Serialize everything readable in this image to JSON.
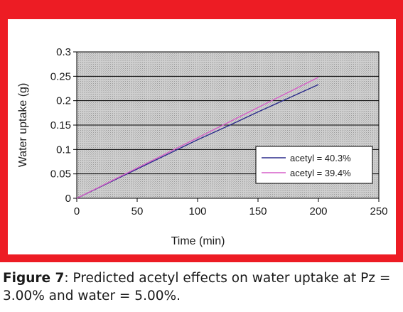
{
  "colors": {
    "frame": "#ed1c24",
    "plot_background": "#c8c8c8",
    "series_1": "#2b2b8c",
    "series_2": "#d65fc8"
  },
  "caption": {
    "label": "Figure 7",
    "text": ": Predicted acetyl effects on water uptake at Pz = 3.00% and water = 5.00%."
  },
  "chart_data": {
    "type": "line",
    "title": "",
    "xlabel": "Time (min)",
    "ylabel": "Water uptake (g)",
    "xlim": [
      0,
      250
    ],
    "ylim": [
      0,
      0.3
    ],
    "x_ticks": [
      "0",
      "50",
      "100",
      "150",
      "200",
      "250"
    ],
    "y_ticks": [
      "0",
      "0.05",
      "0.1",
      "0.15",
      "0.2",
      "0.25",
      "0.3"
    ],
    "grid": "horizontal",
    "legend_position": "center-right",
    "series": [
      {
        "name": "acetyl = 40.3%",
        "x": [
          0,
          25,
          50,
          75,
          100,
          125,
          150,
          175,
          200
        ],
        "y": [
          0,
          0.03,
          0.06,
          0.09,
          0.12,
          0.148,
          0.177,
          0.205,
          0.233
        ]
      },
      {
        "name": "acetyl = 39.4%",
        "x": [
          0,
          25,
          50,
          75,
          100,
          125,
          150,
          175,
          200
        ],
        "y": [
          0,
          0.031,
          0.062,
          0.093,
          0.124,
          0.155,
          0.186,
          0.217,
          0.248
        ]
      }
    ]
  }
}
